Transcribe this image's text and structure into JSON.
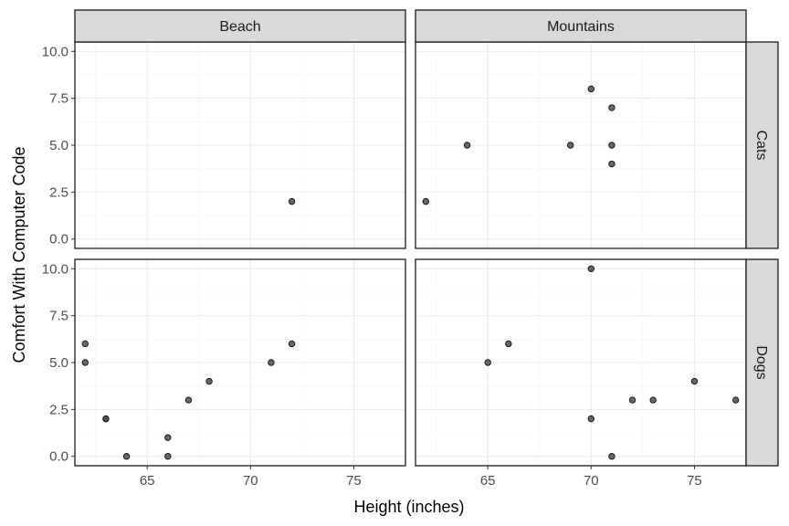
{
  "chart_data": {
    "type": "scatter",
    "xlabel": "Height (inches)",
    "ylabel": "Comfort With Computer Code",
    "facet_cols": [
      "Beach",
      "Mountains"
    ],
    "facet_rows": [
      "Cats",
      "Dogs"
    ],
    "xlim": [
      61.5,
      77.5
    ],
    "ylim": [
      -0.5,
      10.5
    ],
    "x_ticks": [
      65,
      70,
      75
    ],
    "y_ticks": [
      "0.0",
      "2.5",
      "5.0",
      "7.5",
      "10.0"
    ],
    "y_tick_values": [
      0,
      2.5,
      5,
      7.5,
      10
    ],
    "grid": true,
    "panels": [
      {
        "col": "Beach",
        "row": "Cats",
        "points": [
          {
            "x": 72,
            "y": 2
          }
        ]
      },
      {
        "col": "Mountains",
        "row": "Cats",
        "points": [
          {
            "x": 62,
            "y": 2
          },
          {
            "x": 64,
            "y": 5
          },
          {
            "x": 69,
            "y": 5
          },
          {
            "x": 70,
            "y": 8
          },
          {
            "x": 71,
            "y": 7
          },
          {
            "x": 71,
            "y": 5
          },
          {
            "x": 71,
            "y": 4
          }
        ]
      },
      {
        "col": "Beach",
        "row": "Dogs",
        "points": [
          {
            "x": 62,
            "y": 6
          },
          {
            "x": 62,
            "y": 5
          },
          {
            "x": 63,
            "y": 2
          },
          {
            "x": 63,
            "y": 2
          },
          {
            "x": 64,
            "y": 0
          },
          {
            "x": 66,
            "y": 1
          },
          {
            "x": 66,
            "y": 0
          },
          {
            "x": 67,
            "y": 3
          },
          {
            "x": 68,
            "y": 4
          },
          {
            "x": 71,
            "y": 5
          },
          {
            "x": 72,
            "y": 6
          }
        ]
      },
      {
        "col": "Mountains",
        "row": "Dogs",
        "points": [
          {
            "x": 65,
            "y": 5
          },
          {
            "x": 66,
            "y": 6
          },
          {
            "x": 70,
            "y": 10
          },
          {
            "x": 70,
            "y": 2
          },
          {
            "x": 71,
            "y": 0
          },
          {
            "x": 72,
            "y": 3
          },
          {
            "x": 73,
            "y": 3
          },
          {
            "x": 75,
            "y": 4
          },
          {
            "x": 77,
            "y": 3
          }
        ]
      }
    ]
  }
}
